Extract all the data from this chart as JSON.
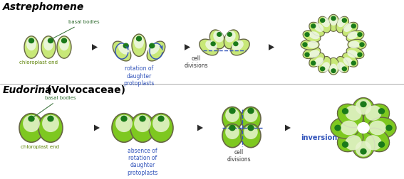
{
  "bg_color": "#ffffff",
  "cell_green_dark": "#7ec820",
  "cell_green_light": "#c8e878",
  "cell_white": "#e8f5d0",
  "cell_stroke": "#666644",
  "dot_color": "#1a7a1a",
  "arrow_fill": "#2a2a2a",
  "blue_color": "#3355bb",
  "title1": "Astrephomene",
  "title2_italic": "Eudorina",
  "title2_normal": " (Volvocaceae)",
  "label_basal": "basal bodies",
  "label_chloro": "chloroplast end",
  "label_rot": "rotation of\ndaughter\nprotoplasts",
  "label_abs": "absence of\nrotation of\ndaughter\nprotoplasts",
  "label_cell1": "cell\ndivisions",
  "label_cell2": "cell\ndivisions",
  "label_inv": "inversion"
}
